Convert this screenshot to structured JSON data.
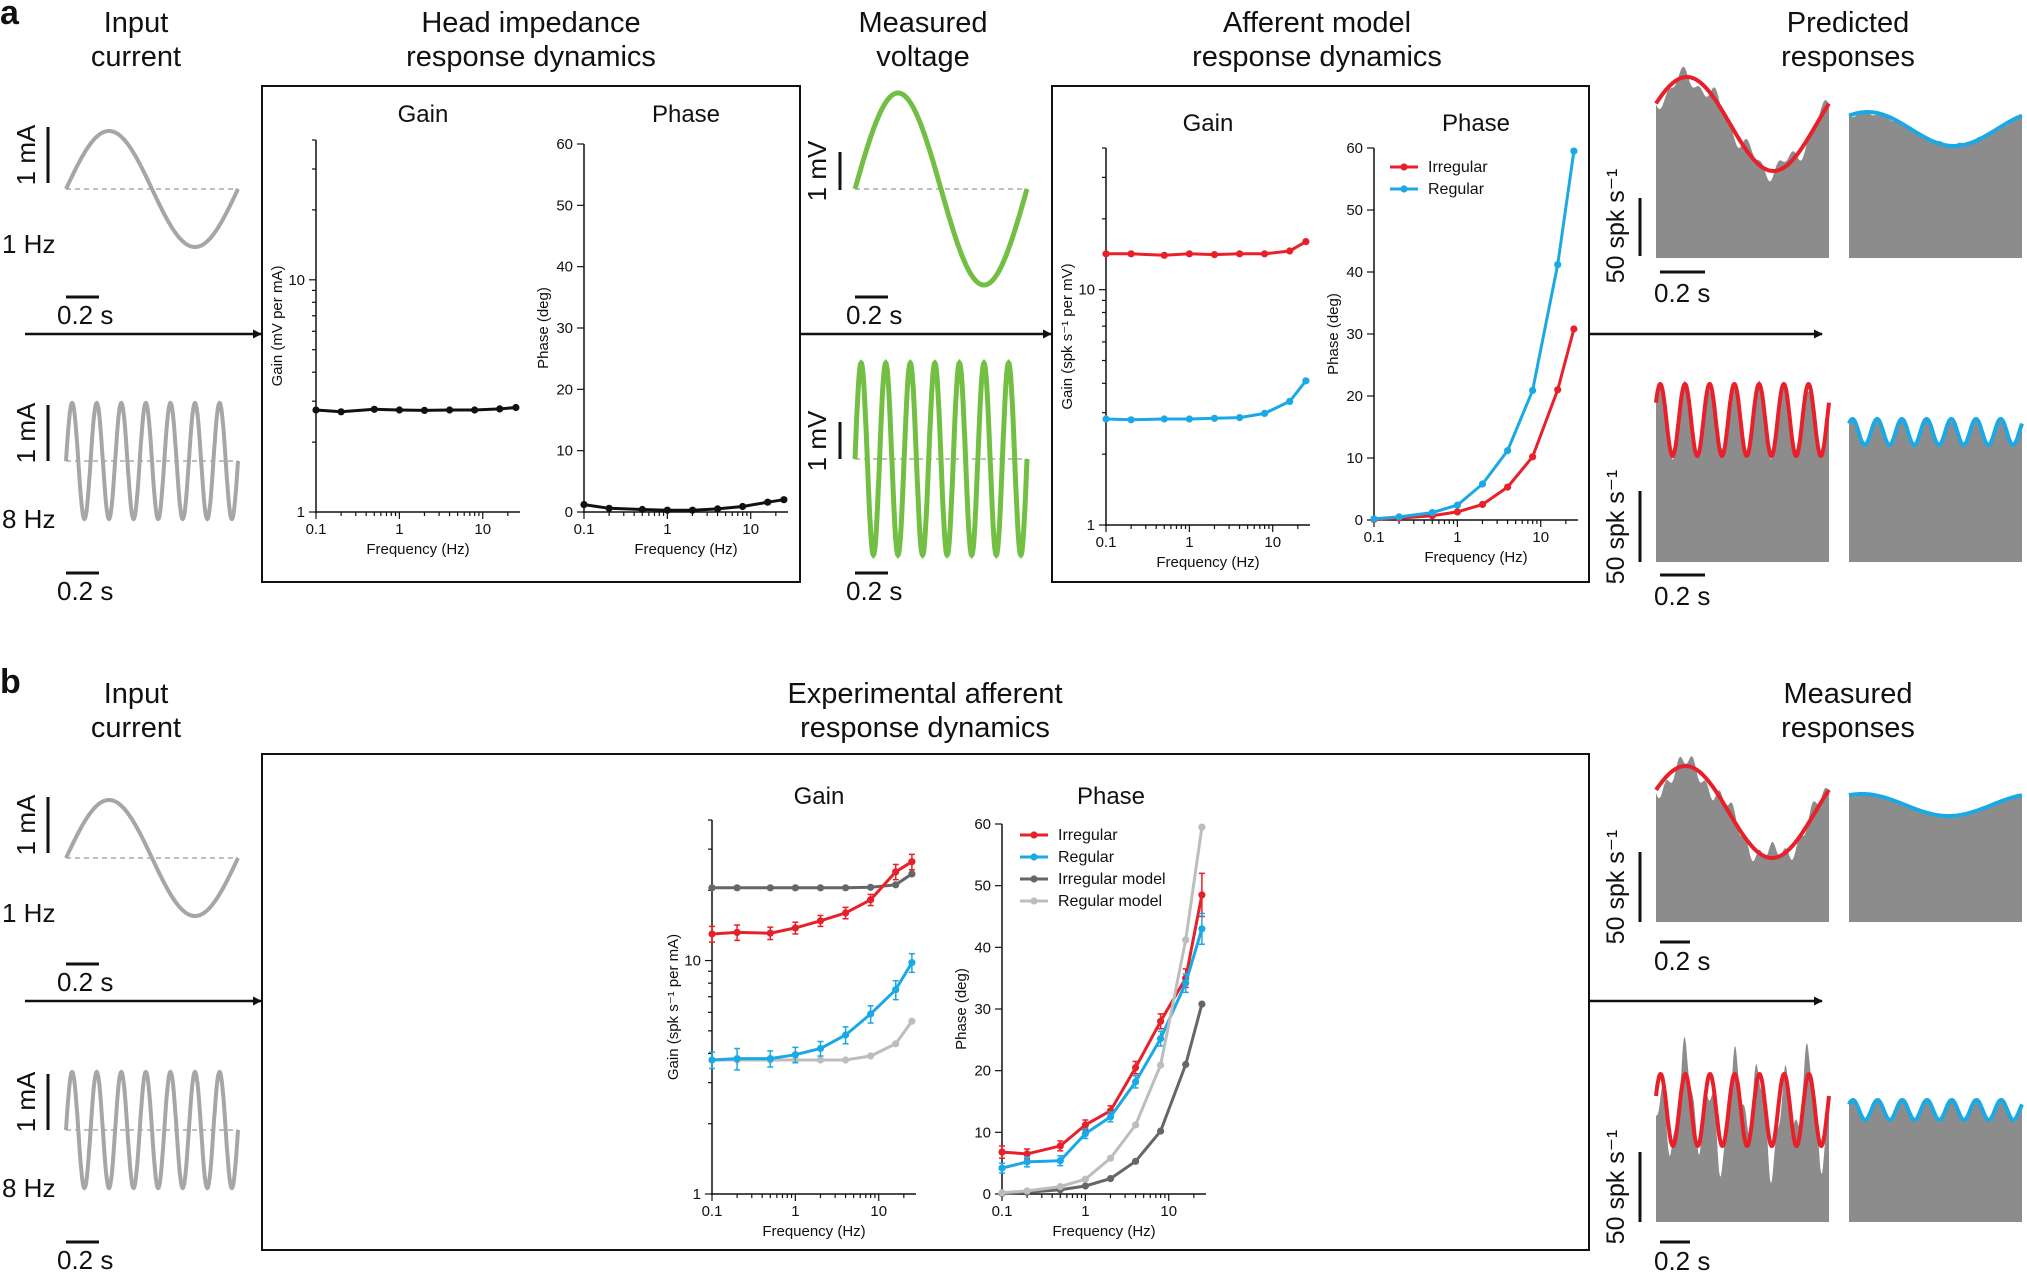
{
  "panels": {
    "a": {
      "label": "a",
      "headers": {
        "input": [
          "Input",
          "current"
        ],
        "head": [
          "Head impedance",
          "response dynamics"
        ],
        "measured": [
          "Measured",
          "voltage"
        ],
        "afferent": [
          "Afferent model",
          "response dynamics"
        ],
        "predicted": [
          "Predicted",
          "responses"
        ]
      }
    },
    "b": {
      "label": "b",
      "headers": {
        "input": [
          "Input",
          "current"
        ],
        "experimental": [
          "Experimental afferent",
          "response dynamics"
        ],
        "measured": [
          "Measured",
          "responses"
        ]
      }
    }
  },
  "scalebars": {
    "ma": "1 mA",
    "mv": "1 mV",
    "time": "0.2 s",
    "spk": "50 spk s⁻¹",
    "freq_1hz": "1 Hz",
    "freq_8hz": "8 Hz"
  },
  "colors": {
    "irregular": "#e8202a",
    "regular": "#1ba9e6",
    "irregular_model": "#666666",
    "regular_model": "#bdbdbd",
    "voltage": "#72bf44",
    "current": "#a6a6a6",
    "histogram": "#8c8c8c",
    "head": "#111111"
  },
  "chart_data": [
    {
      "id": "head-gain",
      "type": "line",
      "title": "Gain",
      "xlabel": "Frequency (Hz)",
      "ylabel": "Gain (mV per mA)",
      "xscale": "log",
      "yscale": "log",
      "xlim": [
        0.1,
        28
      ],
      "ylim": [
        1,
        40
      ],
      "xticks": [
        0.1,
        1,
        10
      ],
      "xtick_labels": [
        "0.1",
        "1",
        "10"
      ],
      "yticks": [
        1,
        10
      ],
      "ytick_labels": [
        "1",
        "10"
      ],
      "x": [
        0.1,
        0.2,
        0.5,
        1,
        2,
        4,
        8,
        16,
        25
      ],
      "series": [
        {
          "color_key": "head",
          "values": [
            2.75,
            2.7,
            2.77,
            2.75,
            2.74,
            2.75,
            2.75,
            2.78,
            2.82
          ]
        }
      ]
    },
    {
      "id": "head-phase",
      "type": "line",
      "title": "Phase",
      "xlabel": "Frequency (Hz)",
      "ylabel": "Phase (deg)",
      "xscale": "log",
      "yscale": "linear",
      "xlim": [
        0.1,
        28
      ],
      "ylim": [
        0,
        60
      ],
      "xticks": [
        0.1,
        1,
        10
      ],
      "xtick_labels": [
        "0.1",
        "1",
        "10"
      ],
      "yticks": [
        0,
        10,
        20,
        30,
        40,
        50,
        60
      ],
      "ytick_labels": [
        "0",
        "10",
        "20",
        "30",
        "40",
        "50",
        "60"
      ],
      "x": [
        0.1,
        0.2,
        0.5,
        1,
        2,
        4,
        8,
        16,
        25
      ],
      "series": [
        {
          "color_key": "head",
          "values": [
            1.2,
            0.6,
            0.4,
            0.3,
            0.3,
            0.5,
            0.9,
            1.6,
            2.0
          ]
        }
      ]
    },
    {
      "id": "model-gain",
      "type": "line",
      "title": "Gain",
      "xlabel": "Frequency (Hz)",
      "ylabel": "Gain (spk s⁻¹ per mV)",
      "xscale": "log",
      "yscale": "log",
      "xlim": [
        0.1,
        28
      ],
      "ylim": [
        1,
        40
      ],
      "xticks": [
        0.1,
        1,
        10
      ],
      "xtick_labels": [
        "0.1",
        "1",
        "10"
      ],
      "yticks": [
        1,
        10
      ],
      "ytick_labels": [
        "1",
        "10"
      ],
      "x": [
        0.1,
        0.2,
        0.5,
        1,
        2,
        4,
        8,
        16,
        25
      ],
      "series": [
        {
          "color_key": "irregular",
          "values": [
            14.2,
            14.2,
            14.0,
            14.2,
            14.1,
            14.2,
            14.2,
            14.6,
            16.0
          ]
        },
        {
          "color_key": "regular",
          "values": [
            2.82,
            2.8,
            2.82,
            2.82,
            2.84,
            2.86,
            2.98,
            3.35,
            4.1
          ]
        }
      ]
    },
    {
      "id": "model-phase",
      "type": "line",
      "title": "Phase",
      "xlabel": "Frequency (Hz)",
      "ylabel": "Phase (deg)",
      "xscale": "log",
      "yscale": "linear",
      "xlim": [
        0.1,
        28
      ],
      "ylim": [
        0,
        60
      ],
      "xticks": [
        0.1,
        1,
        10
      ],
      "xtick_labels": [
        "0.1",
        "1",
        "10"
      ],
      "yticks": [
        0,
        10,
        20,
        30,
        40,
        50,
        60
      ],
      "ytick_labels": [
        "0",
        "10",
        "20",
        "30",
        "40",
        "50",
        "60"
      ],
      "legend": "top-left",
      "x": [
        0.1,
        0.2,
        0.5,
        1,
        2,
        4,
        8,
        16,
        25
      ],
      "series": [
        {
          "name": "Irregular",
          "color_key": "irregular",
          "values": [
            0.1,
            0.3,
            0.7,
            1.3,
            2.5,
            5.3,
            10.2,
            21.0,
            30.8
          ]
        },
        {
          "name": "Regular",
          "color_key": "regular",
          "values": [
            0.2,
            0.5,
            1.2,
            2.4,
            5.8,
            11.2,
            20.9,
            41.2,
            59.5
          ]
        }
      ]
    },
    {
      "id": "exp-gain",
      "type": "line",
      "title": "Gain",
      "xlabel": "Frequency (Hz)",
      "ylabel": "Gain (spk s⁻¹ per mA)",
      "xscale": "log",
      "yscale": "log",
      "xlim": [
        0.1,
        28
      ],
      "ylim": [
        1,
        40
      ],
      "xticks": [
        0.1,
        1,
        10
      ],
      "xtick_labels": [
        "0.1",
        "1",
        "10"
      ],
      "yticks": [
        1,
        10
      ],
      "ytick_labels": [
        "1",
        "10"
      ],
      "x": [
        0.1,
        0.2,
        0.5,
        1,
        2,
        4,
        8,
        16,
        25
      ],
      "series": [
        {
          "name": "Irregular model",
          "color_key": "irregular_model",
          "values": [
            20.5,
            20.5,
            20.5,
            20.5,
            20.5,
            20.5,
            20.6,
            21.1,
            23.5
          ]
        },
        {
          "name": "Regular model",
          "color_key": "regular_model",
          "values": [
            3.75,
            3.75,
            3.75,
            3.75,
            3.75,
            3.75,
            3.9,
            4.4,
            5.5
          ]
        },
        {
          "name": "Irregular",
          "color_key": "irregular",
          "values": [
            13.0,
            13.2,
            13.1,
            13.8,
            14.8,
            16.0,
            18.2,
            24.0,
            26.5
          ],
          "err": [
            1.0,
            1.0,
            0.8,
            0.8,
            0.8,
            0.9,
            1.0,
            1.8,
            2.0
          ]
        },
        {
          "name": "Regular",
          "color_key": "regular",
          "values": [
            3.75,
            3.8,
            3.8,
            3.95,
            4.2,
            4.8,
            5.9,
            7.5,
            9.8
          ],
          "err": [
            0.3,
            0.4,
            0.3,
            0.3,
            0.3,
            0.4,
            0.5,
            0.7,
            0.9
          ]
        }
      ]
    },
    {
      "id": "exp-phase",
      "type": "line",
      "title": "Phase",
      "xlabel": "Frequency (Hz)",
      "ylabel": "Phase (deg)",
      "xscale": "log",
      "yscale": "linear",
      "xlim": [
        0.1,
        28
      ],
      "ylim": [
        0,
        60
      ],
      "xticks": [
        0.1,
        1,
        10
      ],
      "xtick_labels": [
        "0.1",
        "1",
        "10"
      ],
      "yticks": [
        0,
        10,
        20,
        30,
        40,
        50,
        60
      ],
      "ytick_labels": [
        "0",
        "10",
        "20",
        "30",
        "40",
        "50",
        "60"
      ],
      "legend": "top-left",
      "x": [
        0.1,
        0.2,
        0.5,
        1,
        2,
        4,
        8,
        16,
        25
      ],
      "series": [
        {
          "name": "Irregular",
          "color_key": "irregular",
          "values": [
            6.8,
            6.5,
            7.8,
            11.2,
            13.5,
            20.5,
            28.0,
            35.0,
            48.5
          ],
          "err": [
            1.0,
            0.8,
            0.8,
            0.8,
            0.8,
            1.0,
            1.2,
            1.5,
            3.5
          ]
        },
        {
          "name": "Regular",
          "color_key": "regular",
          "values": [
            4.2,
            5.2,
            5.4,
            9.8,
            12.5,
            18.2,
            25.2,
            34.2,
            43.0
          ],
          "err": [
            0.8,
            0.8,
            0.8,
            0.8,
            0.8,
            1.0,
            1.2,
            1.5,
            2.5
          ]
        },
        {
          "name": "Irregular model",
          "color_key": "irregular_model",
          "values": [
            0.1,
            0.3,
            0.7,
            1.3,
            2.5,
            5.3,
            10.2,
            21.0,
            30.8
          ]
        },
        {
          "name": "Regular model",
          "color_key": "regular_model",
          "values": [
            0.2,
            0.5,
            1.2,
            2.4,
            5.8,
            11.2,
            20.9,
            41.2,
            59.5
          ]
        }
      ]
    }
  ]
}
